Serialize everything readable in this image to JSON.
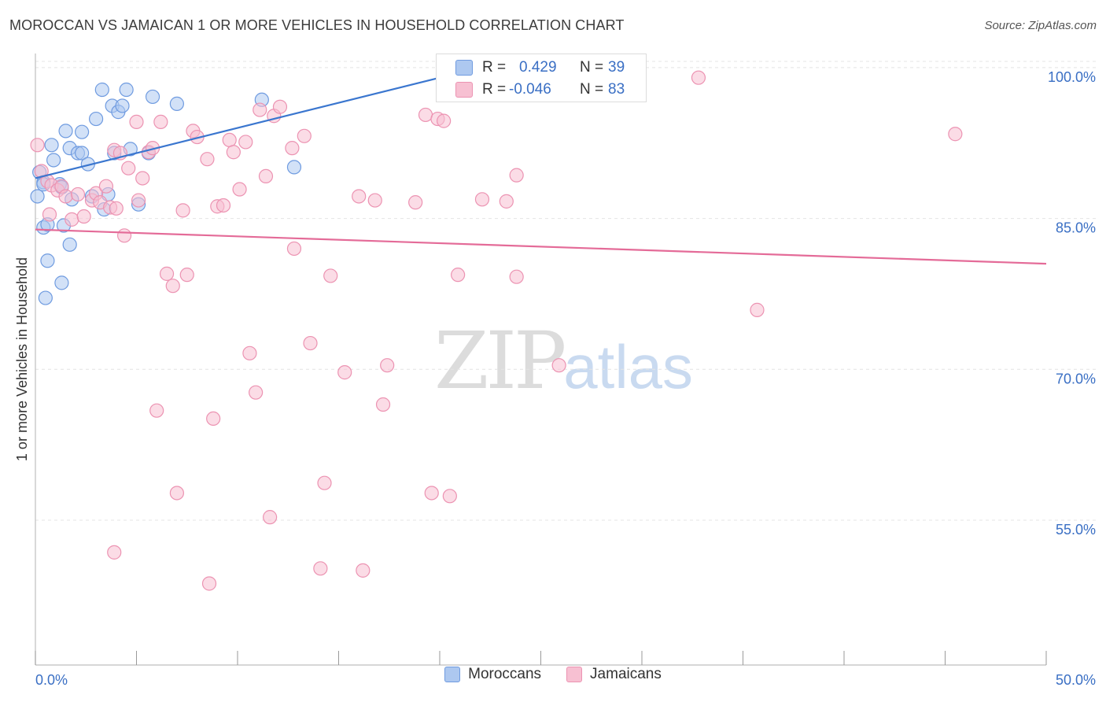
{
  "title": "MOROCCAN VS JAMAICAN 1 OR MORE VEHICLES IN HOUSEHOLD CORRELATION CHART",
  "source": "Source: ZipAtlas.com",
  "watermark": {
    "zip": "ZIP",
    "atlas": "atlas"
  },
  "colors": {
    "moroccan_fill": "#adc8f0",
    "moroccan_stroke": "#6f9be0",
    "moroccan_line": "#3a76cf",
    "jamaican_fill": "#f7c0d2",
    "jamaican_stroke": "#ec93b2",
    "jamaican_line": "#e46b98",
    "tick_label": "#3a6fc4",
    "grid": "#e4e4e4"
  },
  "stats": [
    {
      "r_label": "R =",
      "r_value": "0.429",
      "n_label": "N =",
      "n_value": "39"
    },
    {
      "r_label": "R =",
      "r_value": "-0.046",
      "n_label": "N =",
      "n_value": "83"
    }
  ],
  "legend": [
    "Moroccans",
    "Jamaicans"
  ],
  "chart_data": {
    "type": "scatter",
    "title": "MOROCCAN VS JAMAICAN 1 OR MORE VEHICLES IN HOUSEHOLD CORRELATION CHART",
    "xlabel": "",
    "ylabel": "1 or more Vehicles in Household",
    "xlim": [
      0,
      50
    ],
    "ylim": [
      40.6,
      101.4
    ],
    "x_tick_labels": [
      "0.0%",
      "50.0%"
    ],
    "y_ticks": [
      55,
      70,
      85,
      100
    ],
    "y_tick_labels": [
      "55.0%",
      "70.0%",
      "85.0%",
      "100.0%"
    ],
    "grid": true,
    "legend_position": "bottom-center",
    "series": [
      {
        "name": "Moroccans",
        "trend": {
          "x": [
            0.0,
            22.0
          ],
          "y": [
            89.0,
            100.0
          ]
        },
        "points": [
          [
            0.1,
            87.2
          ],
          [
            0.2,
            89.6
          ],
          [
            0.4,
            88.6
          ],
          [
            0.4,
            88.4
          ],
          [
            0.4,
            84.1
          ],
          [
            0.5,
            77.1
          ],
          [
            0.6,
            84.4
          ],
          [
            0.6,
            80.8
          ],
          [
            0.8,
            92.3
          ],
          [
            0.9,
            90.8
          ],
          [
            1.2,
            88.4
          ],
          [
            1.3,
            88.1
          ],
          [
            1.3,
            78.6
          ],
          [
            1.4,
            84.3
          ],
          [
            1.5,
            93.7
          ],
          [
            1.7,
            82.4
          ],
          [
            1.7,
            92.0
          ],
          [
            1.8,
            86.9
          ],
          [
            2.1,
            91.5
          ],
          [
            2.3,
            93.6
          ],
          [
            2.3,
            91.5
          ],
          [
            2.6,
            90.4
          ],
          [
            2.8,
            87.2
          ],
          [
            3.0,
            94.9
          ],
          [
            3.3,
            97.8
          ],
          [
            3.4,
            85.9
          ],
          [
            3.6,
            87.4
          ],
          [
            3.8,
            96.2
          ],
          [
            3.9,
            91.5
          ],
          [
            4.1,
            95.6
          ],
          [
            4.3,
            96.2
          ],
          [
            4.5,
            97.8
          ],
          [
            4.7,
            91.9
          ],
          [
            5.1,
            86.4
          ],
          [
            5.6,
            91.5
          ],
          [
            5.8,
            97.1
          ],
          [
            7.0,
            96.4
          ],
          [
            11.2,
            96.8
          ],
          [
            12.8,
            90.1
          ]
        ]
      },
      {
        "name": "Jamaicans",
        "trend": {
          "x": [
            0.0,
            50.0
          ],
          "y": [
            83.9,
            80.5
          ]
        },
        "points": [
          [
            0.1,
            92.3
          ],
          [
            0.3,
            89.7
          ],
          [
            0.6,
            88.7
          ],
          [
            0.7,
            85.4
          ],
          [
            0.8,
            88.3
          ],
          [
            1.1,
            87.8
          ],
          [
            1.3,
            88.2
          ],
          [
            1.5,
            87.2
          ],
          [
            1.8,
            84.9
          ],
          [
            2.1,
            87.4
          ],
          [
            2.4,
            85.2
          ],
          [
            2.8,
            86.8
          ],
          [
            3.0,
            87.5
          ],
          [
            3.2,
            86.6
          ],
          [
            3.5,
            88.2
          ],
          [
            3.7,
            86.1
          ],
          [
            3.9,
            51.8
          ],
          [
            3.9,
            91.8
          ],
          [
            4.0,
            86.0
          ],
          [
            4.2,
            91.5
          ],
          [
            4.4,
            83.3
          ],
          [
            4.6,
            90.0
          ],
          [
            5.0,
            94.6
          ],
          [
            5.1,
            86.8
          ],
          [
            5.3,
            89.0
          ],
          [
            5.6,
            91.6
          ],
          [
            5.8,
            92.0
          ],
          [
            6.0,
            65.9
          ],
          [
            6.2,
            94.6
          ],
          [
            6.5,
            79.5
          ],
          [
            6.8,
            78.3
          ],
          [
            7.0,
            57.7
          ],
          [
            7.3,
            85.8
          ],
          [
            7.5,
            79.4
          ],
          [
            7.8,
            93.7
          ],
          [
            8.0,
            93.1
          ],
          [
            8.5,
            90.9
          ],
          [
            8.6,
            48.7
          ],
          [
            8.8,
            65.1
          ],
          [
            9.0,
            86.2
          ],
          [
            9.3,
            86.3
          ],
          [
            9.6,
            92.8
          ],
          [
            9.8,
            91.6
          ],
          [
            10.1,
            87.9
          ],
          [
            10.4,
            92.6
          ],
          [
            10.6,
            71.6
          ],
          [
            10.9,
            67.7
          ],
          [
            11.1,
            95.8
          ],
          [
            11.4,
            89.2
          ],
          [
            11.6,
            55.3
          ],
          [
            11.8,
            95.2
          ],
          [
            12.1,
            96.1
          ],
          [
            12.7,
            92.0
          ],
          [
            12.8,
            82.0
          ],
          [
            13.3,
            93.2
          ],
          [
            13.6,
            72.6
          ],
          [
            14.1,
            50.2
          ],
          [
            14.3,
            58.7
          ],
          [
            14.6,
            79.3
          ],
          [
            15.3,
            69.7
          ],
          [
            16.0,
            87.2
          ],
          [
            16.2,
            50.0
          ],
          [
            16.8,
            86.8
          ],
          [
            17.2,
            66.5
          ],
          [
            17.4,
            70.4
          ],
          [
            18.8,
            86.6
          ],
          [
            19.3,
            95.3
          ],
          [
            19.6,
            57.7
          ],
          [
            19.9,
            94.9
          ],
          [
            20.2,
            94.7
          ],
          [
            20.5,
            57.4
          ],
          [
            20.9,
            79.4
          ],
          [
            22.1,
            86.9
          ],
          [
            23.3,
            86.7
          ],
          [
            23.8,
            79.2
          ],
          [
            23.8,
            89.3
          ],
          [
            25.9,
            70.4
          ],
          [
            27.1,
            99.5
          ],
          [
            27.6,
            99.4
          ],
          [
            27.8,
            99.1
          ],
          [
            32.8,
            99.0
          ],
          [
            35.7,
            75.9
          ],
          [
            45.5,
            93.4
          ]
        ]
      }
    ]
  }
}
